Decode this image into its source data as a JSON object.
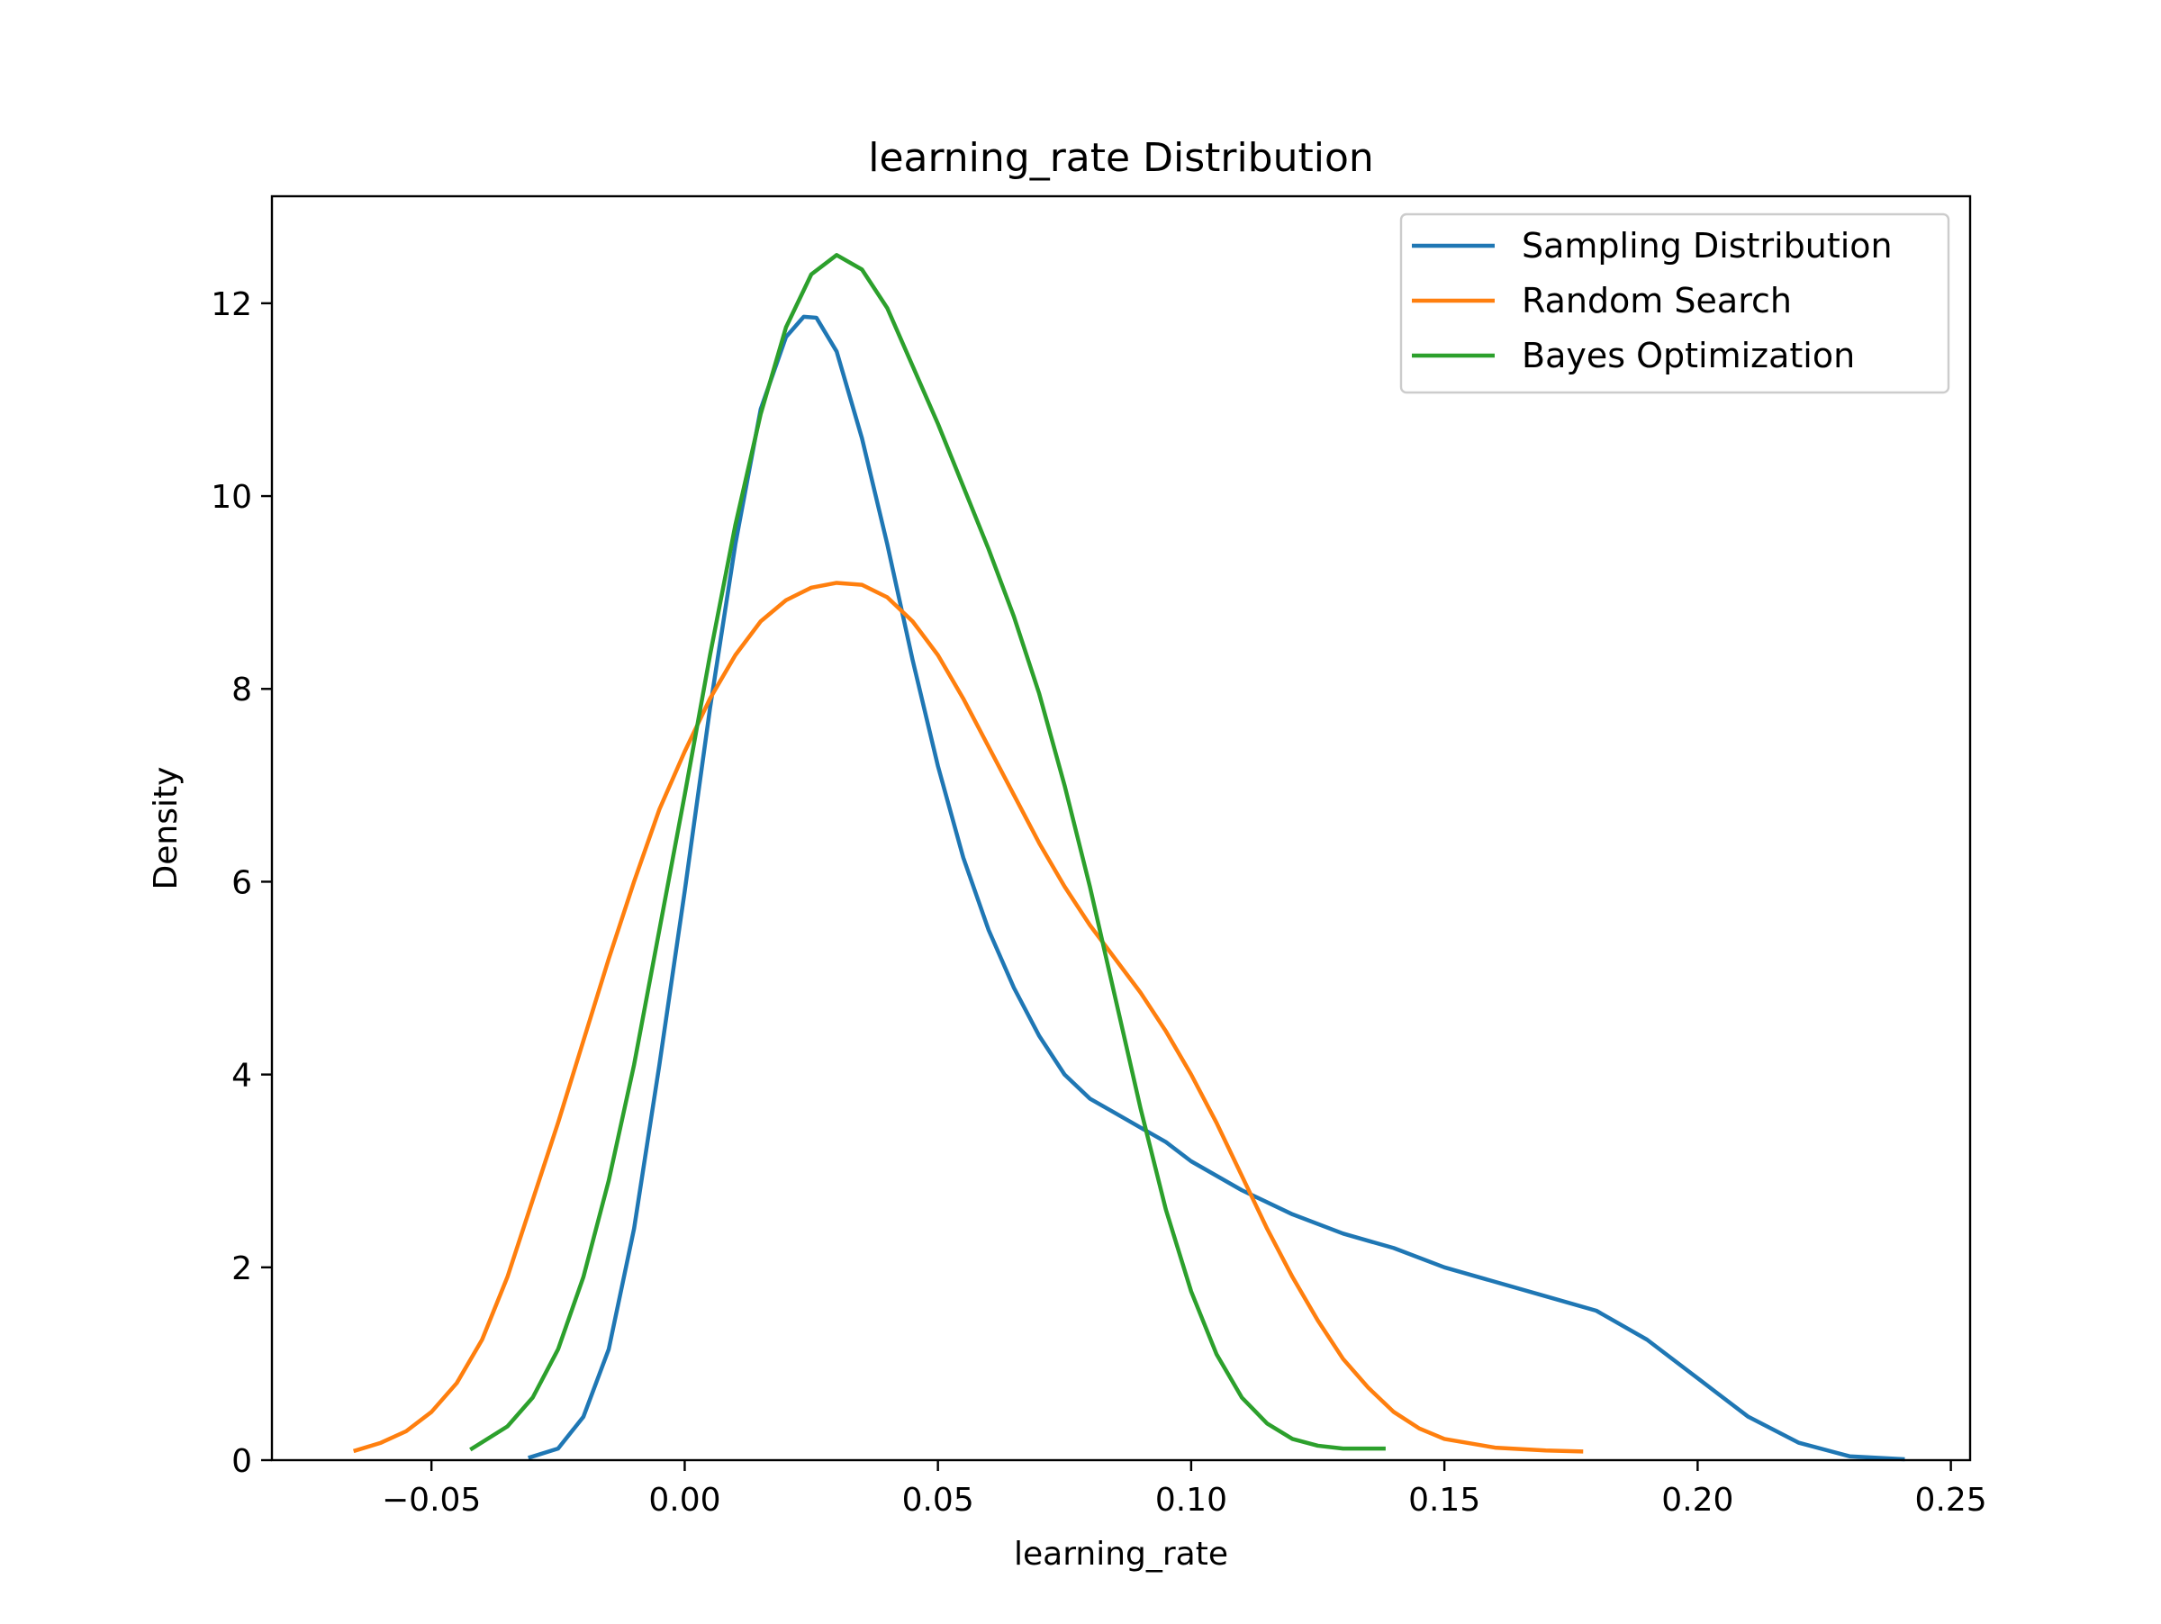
{
  "chart_data": {
    "type": "line",
    "title": "learning_rate Distribution",
    "xlabel": "learning_rate",
    "ylabel": "Density",
    "xlim": [
      -0.0815,
      0.2538
    ],
    "ylim": [
      0,
      13.11
    ],
    "x_ticks": [
      -0.05,
      0.0,
      0.05,
      0.1,
      0.15,
      0.2,
      0.25
    ],
    "x_tick_labels": [
      "−0.05",
      "0.00",
      "0.05",
      "0.10",
      "0.15",
      "0.20",
      "0.25"
    ],
    "y_ticks": [
      0,
      2,
      4,
      6,
      8,
      10,
      12
    ],
    "y_tick_labels": [
      "0",
      "2",
      "4",
      "6",
      "8",
      "10",
      "12"
    ],
    "grid": false,
    "legend_position": "top-right",
    "series": [
      {
        "name": "Sampling Distribution",
        "color": "#1f77b4",
        "points": [
          [
            -0.0305,
            0.03
          ],
          [
            -0.025,
            0.12
          ],
          [
            -0.02,
            0.45
          ],
          [
            -0.015,
            1.15
          ],
          [
            -0.01,
            2.4
          ],
          [
            -0.005,
            4.1
          ],
          [
            0.0,
            5.9
          ],
          [
            0.005,
            7.8
          ],
          [
            0.01,
            9.5
          ],
          [
            0.015,
            10.9
          ],
          [
            0.02,
            11.65
          ],
          [
            0.0235,
            11.86
          ],
          [
            0.026,
            11.85
          ],
          [
            0.03,
            11.5
          ],
          [
            0.035,
            10.6
          ],
          [
            0.04,
            9.5
          ],
          [
            0.045,
            8.3
          ],
          [
            0.05,
            7.2
          ],
          [
            0.055,
            6.25
          ],
          [
            0.06,
            5.5
          ],
          [
            0.065,
            4.9
          ],
          [
            0.07,
            4.4
          ],
          [
            0.075,
            4.0
          ],
          [
            0.08,
            3.75
          ],
          [
            0.085,
            3.6
          ],
          [
            0.09,
            3.45
          ],
          [
            0.095,
            3.3
          ],
          [
            0.1,
            3.1
          ],
          [
            0.11,
            2.8
          ],
          [
            0.12,
            2.55
          ],
          [
            0.13,
            2.35
          ],
          [
            0.14,
            2.2
          ],
          [
            0.15,
            2.0
          ],
          [
            0.16,
            1.85
          ],
          [
            0.17,
            1.7
          ],
          [
            0.18,
            1.55
          ],
          [
            0.19,
            1.25
          ],
          [
            0.2,
            0.85
          ],
          [
            0.21,
            0.45
          ],
          [
            0.22,
            0.18
          ],
          [
            0.23,
            0.04
          ],
          [
            0.2405,
            0.01
          ]
        ]
      },
      {
        "name": "Random Search",
        "color": "#ff7f0e",
        "points": [
          [
            -0.065,
            0.1
          ],
          [
            -0.06,
            0.18
          ],
          [
            -0.055,
            0.3
          ],
          [
            -0.05,
            0.5
          ],
          [
            -0.045,
            0.8
          ],
          [
            -0.04,
            1.25
          ],
          [
            -0.035,
            1.9
          ],
          [
            -0.03,
            2.7
          ],
          [
            -0.025,
            3.5
          ],
          [
            -0.02,
            4.35
          ],
          [
            -0.015,
            5.2
          ],
          [
            -0.01,
            6.0
          ],
          [
            -0.005,
            6.75
          ],
          [
            0.0,
            7.35
          ],
          [
            0.005,
            7.9
          ],
          [
            0.01,
            8.35
          ],
          [
            0.015,
            8.7
          ],
          [
            0.02,
            8.92
          ],
          [
            0.025,
            9.05
          ],
          [
            0.03,
            9.1
          ],
          [
            0.035,
            9.08
          ],
          [
            0.04,
            8.95
          ],
          [
            0.045,
            8.7
          ],
          [
            0.05,
            8.35
          ],
          [
            0.055,
            7.9
          ],
          [
            0.06,
            7.4
          ],
          [
            0.065,
            6.9
          ],
          [
            0.07,
            6.4
          ],
          [
            0.075,
            5.95
          ],
          [
            0.08,
            5.55
          ],
          [
            0.085,
            5.2
          ],
          [
            0.09,
            4.85
          ],
          [
            0.095,
            4.45
          ],
          [
            0.1,
            4.0
          ],
          [
            0.105,
            3.5
          ],
          [
            0.11,
            2.95
          ],
          [
            0.115,
            2.4
          ],
          [
            0.12,
            1.9
          ],
          [
            0.125,
            1.45
          ],
          [
            0.13,
            1.05
          ],
          [
            0.135,
            0.75
          ],
          [
            0.14,
            0.5
          ],
          [
            0.145,
            0.33
          ],
          [
            0.15,
            0.22
          ],
          [
            0.16,
            0.13
          ],
          [
            0.17,
            0.1
          ],
          [
            0.177,
            0.09
          ]
        ]
      },
      {
        "name": "Bayes Optimization",
        "color": "#2ca02c",
        "points": [
          [
            -0.042,
            0.12
          ],
          [
            -0.035,
            0.35
          ],
          [
            -0.03,
            0.65
          ],
          [
            -0.025,
            1.15
          ],
          [
            -0.02,
            1.9
          ],
          [
            -0.015,
            2.9
          ],
          [
            -0.01,
            4.1
          ],
          [
            -0.005,
            5.5
          ],
          [
            0.0,
            6.9
          ],
          [
            0.005,
            8.35
          ],
          [
            0.01,
            9.7
          ],
          [
            0.015,
            10.85
          ],
          [
            0.02,
            11.75
          ],
          [
            0.025,
            12.3
          ],
          [
            0.03,
            12.5
          ],
          [
            0.035,
            12.35
          ],
          [
            0.04,
            11.95
          ],
          [
            0.045,
            11.35
          ],
          [
            0.05,
            10.75
          ],
          [
            0.055,
            10.1
          ],
          [
            0.06,
            9.45
          ],
          [
            0.065,
            8.75
          ],
          [
            0.07,
            7.95
          ],
          [
            0.075,
            7.0
          ],
          [
            0.08,
            5.95
          ],
          [
            0.085,
            4.8
          ],
          [
            0.09,
            3.65
          ],
          [
            0.095,
            2.6
          ],
          [
            0.1,
            1.75
          ],
          [
            0.105,
            1.1
          ],
          [
            0.11,
            0.65
          ],
          [
            0.115,
            0.38
          ],
          [
            0.12,
            0.22
          ],
          [
            0.125,
            0.15
          ],
          [
            0.13,
            0.12
          ],
          [
            0.138,
            0.12
          ]
        ]
      }
    ]
  }
}
